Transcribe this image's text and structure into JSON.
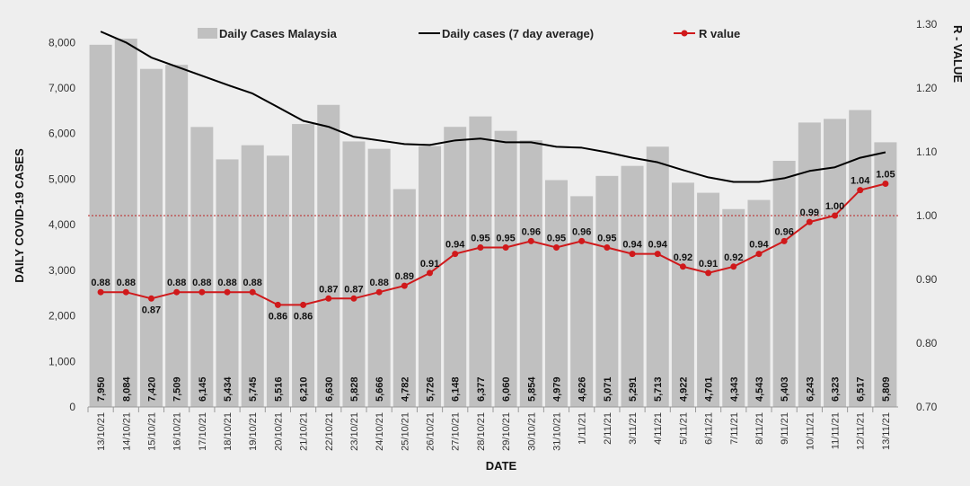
{
  "chart_data": {
    "type": "bar+line",
    "title": "",
    "xlabel": "DATE",
    "ylabel": "DAILY COVID-19 CASES",
    "y2label": "R - VALUE",
    "ylim": [
      0,
      8400
    ],
    "y2lim": [
      0.7,
      1.3
    ],
    "yticks": [
      "0",
      "1,000",
      "2,000",
      "3,000",
      "4,000",
      "5,000",
      "6,000",
      "7,000",
      "8,000"
    ],
    "y2ticks": [
      "0.70",
      "0.80",
      "0.90",
      "1.00",
      "1.10",
      "1.20",
      "1.30"
    ],
    "reference_line": 1.0,
    "categories": [
      "13/10/21",
      "14/10/21",
      "15/10/21",
      "16/10/21",
      "17/10/21",
      "18/10/21",
      "19/10/21",
      "20/10/21",
      "21/10/21",
      "22/10/21",
      "23/10/21",
      "24/10/21",
      "25/10/21",
      "26/10/21",
      "27/10/21",
      "28/10/21",
      "29/10/21",
      "30/10/21",
      "31/10/21",
      "1/11/21",
      "2/11/21",
      "3/11/21",
      "4/11/21",
      "5/11/21",
      "6/11/21",
      "7/11/21",
      "8/11/21",
      "9/11/21",
      "10/11/21",
      "11/11/21",
      "12/11/21",
      "13/11/21"
    ],
    "series": [
      {
        "name": "Daily Cases Malaysia",
        "type": "bar",
        "color": "#c0c0c0",
        "values": [
          7950,
          8084,
          7420,
          7509,
          6145,
          5434,
          5745,
          5516,
          6210,
          6630,
          5828,
          5666,
          4782,
          5726,
          6148,
          6377,
          6060,
          5854,
          4979,
          4626,
          5071,
          5291,
          5713,
          4922,
          4701,
          4343,
          4543,
          5403,
          6243,
          6323,
          6517,
          5809
        ],
        "labels": [
          "7,950",
          "8,084",
          "7,420",
          "7,509",
          "6,145",
          "5,434",
          "5,745",
          "5,516",
          "6,210",
          "6,630",
          "5,828",
          "5,666",
          "4,782",
          "5,726",
          "6,148",
          "6,377",
          "6,060",
          "5,854",
          "4,979",
          "4,626",
          "5,071",
          "5,291",
          "5,713",
          "4,922",
          "4,701",
          "4,343",
          "4,543",
          "5,403",
          "6,243",
          "6,323",
          "6,517",
          "5,809"
        ]
      },
      {
        "name": "Daily cases (7 day average)",
        "type": "line",
        "color": "#000000",
        "values": [
          8240,
          8000,
          7670,
          7470,
          7270,
          7070,
          6880,
          6580,
          6280,
          6150,
          5930,
          5850,
          5770,
          5750,
          5850,
          5890,
          5810,
          5810,
          5710,
          5690,
          5590,
          5470,
          5370,
          5200,
          5040,
          4940,
          4940,
          5020,
          5180,
          5260,
          5470,
          5590
        ]
      },
      {
        "name": "R value",
        "type": "line",
        "axis": "right",
        "color": "#d0191b",
        "values": [
          0.88,
          0.88,
          0.87,
          0.88,
          0.88,
          0.88,
          0.88,
          0.86,
          0.86,
          0.87,
          0.87,
          0.88,
          0.89,
          0.91,
          0.94,
          0.95,
          0.95,
          0.96,
          0.95,
          0.96,
          0.95,
          0.94,
          0.94,
          0.92,
          0.91,
          0.92,
          0.94,
          0.96,
          0.99,
          1.0,
          1.04,
          1.05
        ],
        "labels": [
          "0.88",
          "0.88",
          "0.87",
          "0.88",
          "0.88",
          "0.88",
          "0.88",
          "0.86",
          "0.86",
          "0.87",
          "0.87",
          "0.88",
          "0.89",
          "0.91",
          "0.94",
          "0.95",
          "0.95",
          "0.96",
          "0.95",
          "0.96",
          "0.95",
          "0.94",
          "0.94",
          "0.92",
          "0.91",
          "0.92",
          "0.94",
          "0.96",
          "0.99",
          "1.00",
          "1.04",
          "1.05"
        ]
      }
    ],
    "legend": "top"
  }
}
